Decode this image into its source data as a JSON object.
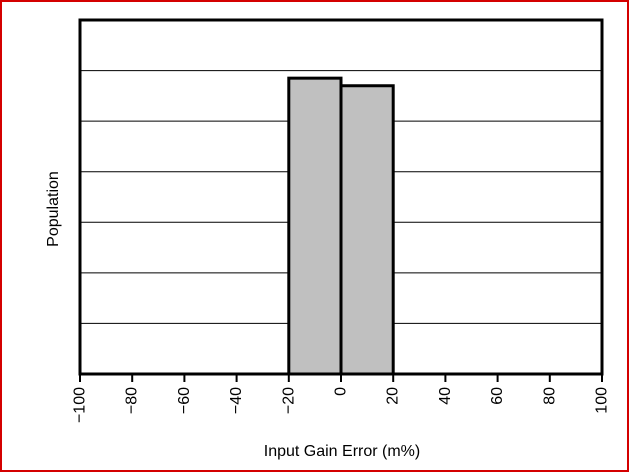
{
  "chart_data": {
    "type": "bar",
    "title": "",
    "xlabel": "Input Gain Error (m%)",
    "ylabel": "Population",
    "xlim": [
      -100,
      100
    ],
    "ylim": [
      0,
      7
    ],
    "x_ticks": [
      -100,
      -80,
      -60,
      -40,
      -20,
      0,
      20,
      40,
      60,
      80,
      100
    ],
    "x_tick_labels": [
      "−100",
      "−80",
      "−60",
      "−40",
      "−20",
      "0",
      "20",
      "40",
      "60",
      "80",
      "100"
    ],
    "y_tick_labels_shown": false,
    "grid": "horizontal",
    "gridlines_y": [
      1,
      2,
      3,
      4,
      5,
      6
    ],
    "bins": [
      {
        "x0": -20,
        "x1": 0,
        "value": 5.85
      },
      {
        "x0": 0,
        "x1": 20,
        "value": 5.7
      }
    ],
    "colors": {
      "bar_fill": "#c0c0c0",
      "bar_stroke": "#000000",
      "grid": "#000000",
      "frame_border": "#d40000"
    }
  }
}
